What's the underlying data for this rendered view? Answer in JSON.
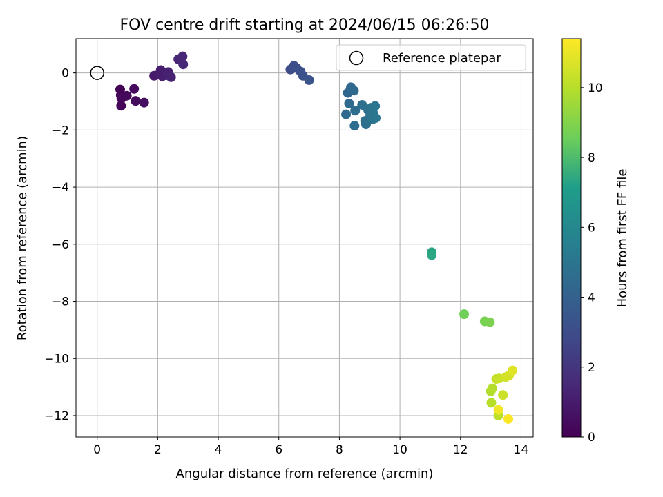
{
  "chart_data": {
    "type": "scatter",
    "title": "FOV centre drift starting at 2024/06/15 06:26:50",
    "xlabel": "Angular distance from reference (arcmin)",
    "ylabel": "Rotation from reference (arcmin)",
    "xlim": [
      -0.7,
      14.4
    ],
    "ylim": [
      -12.75,
      1.2
    ],
    "x_ticks": [
      0,
      2,
      4,
      6,
      8,
      10,
      12,
      14
    ],
    "y_ticks": [
      0,
      -2,
      -4,
      -6,
      -8,
      -10,
      -12
    ],
    "grid": true,
    "legend": {
      "position": "top-right",
      "entries": [
        {
          "label": "Reference platepar",
          "marker": "open-circle"
        }
      ]
    },
    "reference_point": {
      "x": 0,
      "y": 0
    },
    "colorbar": {
      "label": "Hours from first FF file",
      "range": [
        0,
        11.4
      ],
      "ticks": [
        0,
        2,
        4,
        6,
        8,
        10
      ],
      "colormap": "viridis",
      "colors": [
        "#440154",
        "#482777",
        "#3f4a8a",
        "#31678e",
        "#26838f",
        "#1f9d8a",
        "#6cce5a",
        "#b6de2b",
        "#fee825"
      ]
    },
    "series": [
      {
        "points": [
          {
            "x": 0.76,
            "y": -0.58,
            "h": 0.1
          },
          {
            "x": 0.78,
            "y": -0.78,
            "h": 0.15
          },
          {
            "x": 0.79,
            "y": -1.15,
            "h": 0.2
          },
          {
            "x": 0.8,
            "y": -0.9,
            "h": 0.25
          },
          {
            "x": 0.98,
            "y": -0.8,
            "h": 0.3
          },
          {
            "x": 1.22,
            "y": -0.56,
            "h": 0.35
          },
          {
            "x": 1.27,
            "y": -0.98,
            "h": 0.4
          },
          {
            "x": 1.55,
            "y": -1.04,
            "h": 0.5
          },
          {
            "x": 1.88,
            "y": -0.1,
            "h": 0.9
          },
          {
            "x": 2.05,
            "y": -0.04,
            "h": 1.0
          },
          {
            "x": 2.1,
            "y": 0.1,
            "h": 1.05
          },
          {
            "x": 2.15,
            "y": -0.12,
            "h": 1.1
          },
          {
            "x": 2.28,
            "y": -0.08,
            "h": 1.15
          },
          {
            "x": 2.35,
            "y": 0.03,
            "h": 1.2
          },
          {
            "x": 2.44,
            "y": -0.15,
            "h": 1.25
          },
          {
            "x": 2.68,
            "y": 0.48,
            "h": 1.4
          },
          {
            "x": 2.82,
            "y": 0.58,
            "h": 1.45
          },
          {
            "x": 2.84,
            "y": 0.3,
            "h": 1.5
          },
          {
            "x": 6.38,
            "y": 0.12,
            "h": 3.0
          },
          {
            "x": 6.5,
            "y": 0.25,
            "h": 3.05
          },
          {
            "x": 6.58,
            "y": 0.18,
            "h": 3.1
          },
          {
            "x": 6.72,
            "y": 0.05,
            "h": 3.2
          },
          {
            "x": 6.8,
            "y": -0.1,
            "h": 3.25
          },
          {
            "x": 7.0,
            "y": -0.25,
            "h": 3.3
          },
          {
            "x": 8.28,
            "y": -0.7,
            "h": 4.3
          },
          {
            "x": 8.38,
            "y": -0.5,
            "h": 4.35
          },
          {
            "x": 8.48,
            "y": -0.62,
            "h": 4.4
          },
          {
            "x": 8.32,
            "y": -1.07,
            "h": 4.45
          },
          {
            "x": 8.22,
            "y": -1.45,
            "h": 4.5
          },
          {
            "x": 8.52,
            "y": -1.32,
            "h": 4.55
          },
          {
            "x": 8.5,
            "y": -1.85,
            "h": 4.6
          },
          {
            "x": 8.75,
            "y": -1.12,
            "h": 4.65
          },
          {
            "x": 8.85,
            "y": -1.68,
            "h": 4.7
          },
          {
            "x": 8.88,
            "y": -1.8,
            "h": 4.75
          },
          {
            "x": 8.95,
            "y": -1.3,
            "h": 4.8
          },
          {
            "x": 9.02,
            "y": -1.48,
            "h": 4.85
          },
          {
            "x": 9.05,
            "y": -1.22,
            "h": 4.9
          },
          {
            "x": 9.1,
            "y": -1.62,
            "h": 4.95
          },
          {
            "x": 9.12,
            "y": -1.42,
            "h": 5.0
          },
          {
            "x": 9.18,
            "y": -1.16,
            "h": 5.05
          },
          {
            "x": 9.2,
            "y": -1.58,
            "h": 5.1
          },
          {
            "x": 11.05,
            "y": -6.28,
            "h": 7.3
          },
          {
            "x": 11.05,
            "y": -6.38,
            "h": 7.35
          },
          {
            "x": 12.12,
            "y": -8.45,
            "h": 8.6
          },
          {
            "x": 12.8,
            "y": -8.7,
            "h": 8.8
          },
          {
            "x": 12.97,
            "y": -8.73,
            "h": 8.85
          },
          {
            "x": 13.0,
            "y": -11.15,
            "h": 9.9
          },
          {
            "x": 13.05,
            "y": -11.05,
            "h": 9.95
          },
          {
            "x": 13.02,
            "y": -11.55,
            "h": 10.0
          },
          {
            "x": 13.25,
            "y": -12.0,
            "h": 10.1
          },
          {
            "x": 13.18,
            "y": -10.72,
            "h": 10.3
          },
          {
            "x": 13.28,
            "y": -10.7,
            "h": 10.35
          },
          {
            "x": 13.4,
            "y": -11.28,
            "h": 10.4
          },
          {
            "x": 13.5,
            "y": -10.65,
            "h": 10.5
          },
          {
            "x": 13.6,
            "y": -10.6,
            "h": 10.6
          },
          {
            "x": 13.72,
            "y": -10.42,
            "h": 10.8
          },
          {
            "x": 13.25,
            "y": -11.8,
            "h": 11.1
          },
          {
            "x": 13.58,
            "y": -12.12,
            "h": 11.3
          }
        ]
      }
    ]
  }
}
